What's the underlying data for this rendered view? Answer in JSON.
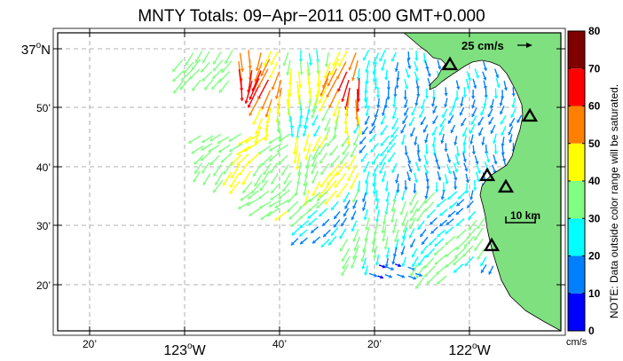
{
  "title": "MNTY Totals: 09−Apr−2011 05:00 GMT+0.000",
  "colors": {
    "land": "#7fe07f",
    "frame": "#000000",
    "grid": "#9a9a9a"
  },
  "lat_ticks": [
    {
      "label": "37",
      "sup": "o",
      "suffix": "N"
    },
    {
      "label": "50’"
    },
    {
      "label": "40’"
    },
    {
      "label": "30’"
    },
    {
      "label": "20’"
    }
  ],
  "lon_ticks": [
    {
      "label": "20’"
    },
    {
      "label": "123",
      "sup": "o",
      "suffix": "W"
    },
    {
      "label": "40’"
    },
    {
      "label": "20’"
    },
    {
      "label": "122",
      "sup": "o",
      "suffix": "W"
    }
  ],
  "scale_arrow_label": "25 cm/s",
  "distance_scale_label": "10 km",
  "colorbar": {
    "ticks": [
      "0",
      "10",
      "20",
      "30",
      "40",
      "50",
      "60",
      "70",
      "80"
    ],
    "bands": [
      "#0000ff",
      "#0080ff",
      "#00ffff",
      "#80ff80",
      "#ffff00",
      "#ff8000",
      "#ff0000",
      "#800000"
    ],
    "unit": "cm/s",
    "note": "NOTE: Data outside color range will be saturated."
  },
  "stations": [
    "site-1",
    "site-2",
    "site-3",
    "site-4",
    "site-5"
  ]
}
